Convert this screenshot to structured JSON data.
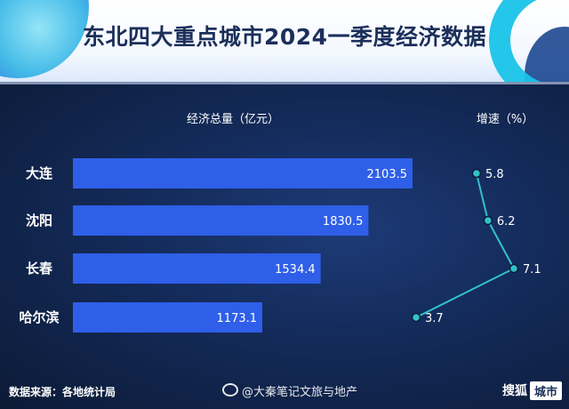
{
  "title": "东北四大重点城市2024一季度经济数据",
  "source": "数据来源：各地统计局",
  "watermark": "@大秦笔记文旅与地产",
  "brand": {
    "name": "搜狐",
    "tag": "城市"
  },
  "colors": {
    "bar": "#2f5fe8",
    "line": "#31c2c9",
    "background": "#142c5c",
    "header": "#ffffff",
    "title": "#1b2f5a"
  },
  "chart_data": [
    {
      "type": "bar",
      "orientation": "horizontal",
      "title": "经济总量（亿元）",
      "categories": [
        "大连",
        "沈阳",
        "长春",
        "哈尔滨"
      ],
      "values": [
        2103.5,
        1830.5,
        1534.4,
        1173.1
      ],
      "xlim": [
        0,
        2103.5
      ]
    },
    {
      "type": "line",
      "title": "增速（%）",
      "categories": [
        "大连",
        "沈阳",
        "长春",
        "哈尔滨"
      ],
      "values": [
        5.8,
        6.2,
        7.1,
        3.7
      ],
      "value_labels": [
        "5.8",
        "6.2",
        "7.1",
        "3.7"
      ]
    }
  ]
}
